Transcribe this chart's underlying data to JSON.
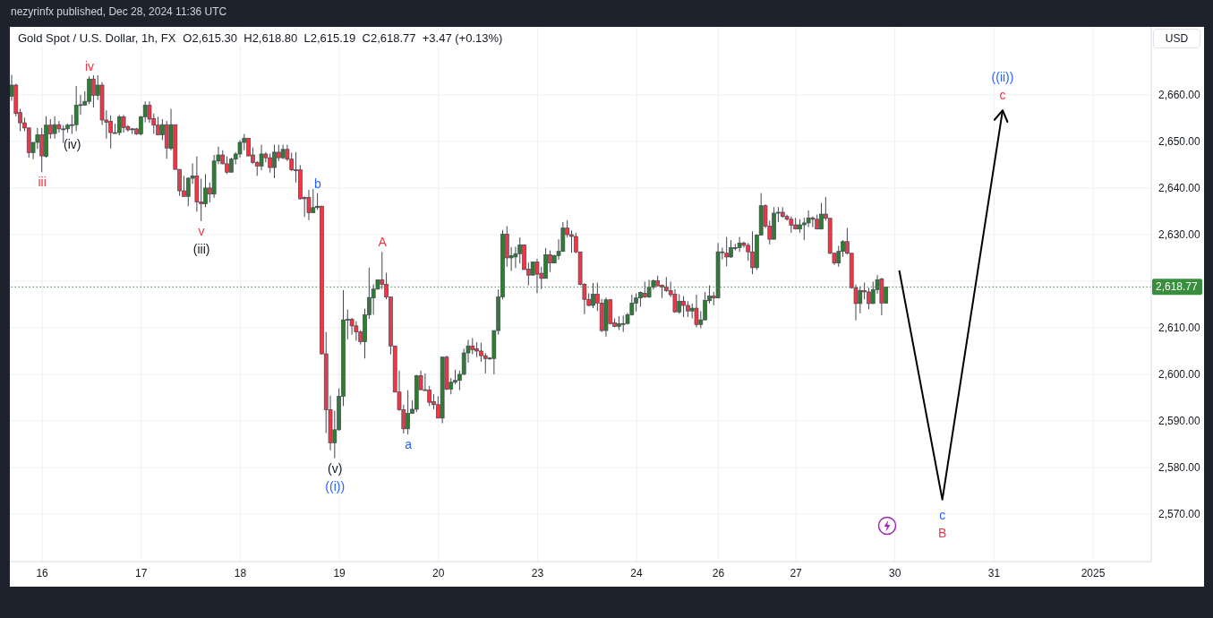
{
  "chart_data": {
    "type": "candlestick",
    "title": "Gold Spot / U.S. Dollar, 1h, FX",
    "subtitle": "O2,615.30  H2,618.80  L2,615.19  C2,618.77  +3.47 (+0.13%)",
    "ylabel": "USD",
    "categories": [
      null,
      null,
      null,
      null,
      null,
      null,
      null,
      "16",
      null,
      null,
      null,
      null,
      null,
      null,
      null,
      null,
      null,
      null,
      null,
      null,
      null,
      null,
      null,
      null,
      null,
      null,
      null,
      null,
      null,
      null,
      "17",
      null,
      null,
      null,
      null,
      null,
      null,
      null,
      null,
      null,
      null,
      null,
      null,
      null,
      null,
      null,
      null,
      null,
      null,
      null,
      null,
      null,
      null,
      "18",
      null,
      null,
      null,
      null,
      null,
      null,
      null,
      null,
      null,
      null,
      null,
      null,
      null,
      null,
      null,
      null,
      null,
      null,
      null,
      null,
      null,
      null,
      "19",
      null,
      null,
      null,
      null,
      null,
      null,
      null,
      null,
      null,
      null,
      null,
      null,
      null,
      null,
      null,
      null,
      null,
      null,
      null,
      null,
      null,
      null,
      "20",
      null,
      null,
      null,
      null,
      null,
      null,
      null,
      null,
      null,
      null,
      null,
      null,
      null,
      null,
      null,
      null,
      null,
      null,
      null,
      null,
      null,
      null,
      "23",
      null,
      null,
      null,
      null,
      null,
      null,
      null,
      null,
      null,
      null,
      null,
      null,
      null,
      null,
      null,
      null,
      null,
      null,
      null,
      null,
      null,
      null,
      "24",
      null,
      null,
      null,
      null,
      null,
      null,
      null,
      null,
      null,
      null,
      null,
      null,
      null,
      null,
      null,
      null,
      null,
      null,
      "26",
      null,
      null,
      null,
      null,
      null,
      null,
      null,
      null,
      null,
      null,
      null,
      null,
      null,
      null,
      null,
      null,
      null,
      "27",
      null,
      null,
      null,
      null,
      null,
      null,
      null,
      null,
      null,
      null,
      null,
      null,
      null,
      null,
      null,
      null,
      null,
      null,
      null,
      null,
      null,
      null,
      "30",
      null,
      null,
      null,
      null,
      null,
      null,
      null,
      null,
      null,
      null,
      null,
      null,
      null,
      null,
      null,
      null,
      null,
      null,
      null,
      null,
      null,
      null,
      "31",
      null,
      null,
      null,
      null,
      null,
      null,
      null,
      null,
      null,
      null,
      null,
      null,
      null,
      null,
      null,
      null,
      null,
      null,
      null,
      null,
      null,
      null,
      "2025",
      null,
      null,
      null,
      null,
      null,
      null,
      null,
      null,
      null,
      null,
      null,
      null,
      null
    ],
    "ohlc": [
      [
        2659.7,
        2664.3,
        2658.7,
        2662.1
      ],
      [
        2662.1,
        2662.4,
        2655.4,
        2656.0
      ],
      [
        2656.2,
        2657.0,
        2652.2,
        2654.0
      ],
      [
        2654.0,
        2655.1,
        2652.2,
        2652.9
      ],
      [
        2652.9,
        2653.0,
        2646.5,
        2647.6
      ],
      [
        2647.6,
        2649.8,
        2646.2,
        2649.8
      ],
      [
        2649.8,
        2652.9,
        2648.4,
        2651.4
      ],
      [
        2651.4,
        2652.9,
        2643.4,
        2646.9
      ],
      [
        2646.8,
        2655.4,
        2646.5,
        2653.5
      ],
      [
        2653.5,
        2654.8,
        2650.6,
        2651.6
      ],
      [
        2651.7,
        2655.4,
        2650.6,
        2653.6
      ],
      [
        2653.6,
        2654.4,
        2651.9,
        2652.7
      ],
      [
        2652.7,
        2653.5,
        2649.7,
        2652.6
      ],
      [
        2652.7,
        2653.8,
        2651.9,
        2653.5
      ],
      [
        2653.6,
        2655.7,
        2651.6,
        2653.6
      ],
      [
        2653.6,
        2661.9,
        2652.2,
        2657.8
      ],
      [
        2657.8,
        2660.0,
        2655.7,
        2657.9
      ],
      [
        2657.8,
        2660.8,
        2657.8,
        2658.6
      ],
      [
        2658.6,
        2664.0,
        2658.0,
        2663.4
      ],
      [
        2663.4,
        2664.2,
        2657.3,
        2659.9
      ],
      [
        2659.9,
        2664.2,
        2658.9,
        2662.1
      ],
      [
        2662.1,
        2662.7,
        2653.5,
        2654.6
      ],
      [
        2654.6,
        2656.7,
        2650.6,
        2654.1
      ],
      [
        2654.3,
        2655.6,
        2648.5,
        2651.9
      ],
      [
        2651.9,
        2653.8,
        2651.7,
        2651.9
      ],
      [
        2651.9,
        2655.7,
        2651.3,
        2655.3
      ],
      [
        2655.3,
        2655.7,
        2651.9,
        2653.0
      ],
      [
        2653.2,
        2653.5,
        2652.1,
        2652.5
      ],
      [
        2652.7,
        2652.9,
        2651.6,
        2652.7
      ],
      [
        2652.7,
        2652.9,
        2651.4,
        2651.6
      ],
      [
        2651.6,
        2655.5,
        2651.3,
        2655.3
      ],
      [
        2655.3,
        2658.6,
        2654.1,
        2657.8
      ],
      [
        2657.8,
        2658.6,
        2654.0,
        2654.8
      ],
      [
        2654.9,
        2656.0,
        2651.6,
        2653.5
      ],
      [
        2653.5,
        2655.3,
        2651.4,
        2651.4
      ],
      [
        2651.4,
        2654.8,
        2650.3,
        2653.6
      ],
      [
        2653.6,
        2654.4,
        2646.3,
        2648.6
      ],
      [
        2648.5,
        2657.0,
        2648.1,
        2653.6
      ],
      [
        2653.6,
        2653.6,
        2644.0,
        2644.0
      ],
      [
        2644.0,
        2644.0,
        2638.3,
        2639.4
      ],
      [
        2639.4,
        2642.6,
        2638.2,
        2638.2
      ],
      [
        2638.2,
        2642.3,
        2636.1,
        2642.1
      ],
      [
        2642.1,
        2645.3,
        2640.9,
        2642.6
      ],
      [
        2642.6,
        2646.8,
        2634.9,
        2637.0
      ],
      [
        2637.0,
        2642.0,
        2632.9,
        2636.6
      ],
      [
        2636.6,
        2643.0,
        2635.9,
        2640.0
      ],
      [
        2640.0,
        2641.2,
        2636.9,
        2638.7
      ],
      [
        2638.7,
        2647.1,
        2637.9,
        2645.8
      ],
      [
        2645.8,
        2648.9,
        2645.1,
        2647.1
      ],
      [
        2647.1,
        2648.1,
        2645.1,
        2645.2
      ],
      [
        2645.2,
        2646.8,
        2643.0,
        2643.4
      ],
      [
        2643.4,
        2646.5,
        2643.4,
        2646.2
      ],
      [
        2646.2,
        2647.7,
        2645.1,
        2647.3
      ],
      [
        2647.3,
        2650.3,
        2646.5,
        2649.8
      ],
      [
        2649.8,
        2651.6,
        2648.1,
        2650.7
      ],
      [
        2650.7,
        2650.7,
        2646.8,
        2646.9
      ],
      [
        2647.1,
        2648.7,
        2645.2,
        2645.5
      ],
      [
        2645.5,
        2645.8,
        2642.6,
        2644.7
      ],
      [
        2644.7,
        2649.3,
        2643.8,
        2647.3
      ],
      [
        2647.3,
        2647.7,
        2645.5,
        2646.5
      ],
      [
        2646.5,
        2647.4,
        2643.3,
        2644.4
      ],
      [
        2644.4,
        2649.3,
        2642.1,
        2647.7
      ],
      [
        2647.7,
        2649.3,
        2645.8,
        2646.5
      ],
      [
        2646.5,
        2649.3,
        2646.2,
        2648.3
      ],
      [
        2648.3,
        2649.3,
        2645.8,
        2646.2
      ],
      [
        2646.2,
        2647.6,
        2643.6,
        2643.9
      ],
      [
        2643.9,
        2647.7,
        2641.2,
        2643.8
      ],
      [
        2643.9,
        2644.9,
        2637.5,
        2637.7
      ],
      [
        2638.0,
        2638.2,
        2633.8,
        2637.7
      ],
      [
        2638.0,
        2639.6,
        2633.1,
        2634.7
      ],
      [
        2634.7,
        2639.8,
        2634.7,
        2635.8
      ],
      [
        2635.8,
        2638.9,
        2635.3,
        2636.1
      ],
      [
        2636.1,
        2636.2,
        2604.2,
        2604.4
      ],
      [
        2604.4,
        2609.1,
        2587.4,
        2592.4
      ],
      [
        2592.4,
        2595.4,
        2583.7,
        2585.3
      ],
      [
        2585.3,
        2592.2,
        2582.0,
        2588.1
      ],
      [
        2588.1,
        2597.0,
        2587.9,
        2595.3
      ],
      [
        2595.3,
        2618.1,
        2593.2,
        2611.7
      ],
      [
        2611.8,
        2613.9,
        2607.5,
        2611.8
      ],
      [
        2611.8,
        2612.1,
        2608.5,
        2610.4
      ],
      [
        2610.4,
        2611.4,
        2607.2,
        2609.1
      ],
      [
        2609.1,
        2609.5,
        2606.4,
        2607.0
      ],
      [
        2607.0,
        2614.1,
        2603.4,
        2612.8
      ],
      [
        2612.8,
        2622.9,
        2611.9,
        2616.5
      ],
      [
        2616.4,
        2619.3,
        2612.8,
        2618.3
      ],
      [
        2618.3,
        2620.3,
        2618.2,
        2620.3
      ],
      [
        2620.3,
        2626.3,
        2618.3,
        2619.3
      ],
      [
        2619.3,
        2621.8,
        2616.1,
        2616.6
      ],
      [
        2616.6,
        2616.6,
        2604.3,
        2606.1
      ],
      [
        2606.1,
        2606.1,
        2596.1,
        2596.2
      ],
      [
        2596.2,
        2600.8,
        2592.2,
        2592.4
      ],
      [
        2592.4,
        2593.5,
        2587.3,
        2588.3
      ],
      [
        2588.3,
        2596.6,
        2587.1,
        2591.6
      ],
      [
        2591.6,
        2594.4,
        2591.6,
        2592.5
      ],
      [
        2592.5,
        2599.9,
        2591.9,
        2599.7
      ],
      [
        2599.7,
        2600.8,
        2596.6,
        2596.7
      ],
      [
        2596.7,
        2600.2,
        2596.6,
        2596.6
      ],
      [
        2596.6,
        2597.5,
        2593.2,
        2594.0
      ],
      [
        2594.1,
        2595.7,
        2592.5,
        2593.5
      ],
      [
        2593.5,
        2595.3,
        2590.6,
        2590.6
      ],
      [
        2590.6,
        2603.7,
        2589.5,
        2603.7
      ],
      [
        2603.7,
        2604.0,
        2596.6,
        2596.8
      ],
      [
        2596.8,
        2599.2,
        2595.7,
        2598.3
      ],
      [
        2598.3,
        2601.0,
        2597.9,
        2598.7
      ],
      [
        2598.7,
        2600.8,
        2596.6,
        2600.0
      ],
      [
        2600.0,
        2605.5,
        2599.9,
        2604.6
      ],
      [
        2604.6,
        2607.4,
        2602.5,
        2606.1
      ],
      [
        2606.1,
        2607.8,
        2604.3,
        2605.3
      ],
      [
        2605.5,
        2606.9,
        2603.7,
        2605.0
      ],
      [
        2605.0,
        2606.8,
        2602.7,
        2604.0
      ],
      [
        2604.0,
        2604.6,
        2600.2,
        2603.4
      ],
      [
        2603.5,
        2603.7,
        2603.1,
        2603.5
      ],
      [
        2603.4,
        2609.4,
        2600.0,
        2609.4
      ],
      [
        2609.4,
        2618.2,
        2608.5,
        2616.6
      ],
      [
        2616.6,
        2631.0,
        2616.1,
        2630.1
      ],
      [
        2630.1,
        2631.8,
        2623.1,
        2625.0
      ],
      [
        2625.0,
        2627.3,
        2622.2,
        2625.5
      ],
      [
        2625.2,
        2627.4,
        2622.8,
        2625.9
      ],
      [
        2625.9,
        2629.4,
        2623.8,
        2627.8
      ],
      [
        2627.8,
        2627.9,
        2622.5,
        2622.5
      ],
      [
        2622.6,
        2624.0,
        2619.1,
        2621.3
      ],
      [
        2621.3,
        2624.2,
        2621.2,
        2624.1
      ],
      [
        2624.1,
        2624.8,
        2617.4,
        2621.5
      ],
      [
        2621.7,
        2623.1,
        2618.3,
        2620.6
      ],
      [
        2620.6,
        2627.1,
        2620.6,
        2625.7
      ],
      [
        2625.7,
        2626.6,
        2622.0,
        2623.9
      ],
      [
        2623.9,
        2625.7,
        2623.8,
        2625.5
      ],
      [
        2625.5,
        2629.0,
        2624.6,
        2626.4
      ],
      [
        2626.4,
        2632.7,
        2626.3,
        2631.4
      ],
      [
        2631.4,
        2633.1,
        2629.4,
        2630.0
      ],
      [
        2630.0,
        2630.9,
        2626.1,
        2629.6
      ],
      [
        2629.6,
        2630.4,
        2626.0,
        2626.3
      ],
      [
        2626.3,
        2626.3,
        2619.1,
        2619.3
      ],
      [
        2619.3,
        2619.6,
        2612.9,
        2616.1
      ],
      [
        2616.1,
        2617.4,
        2614.6,
        2614.8
      ],
      [
        2614.8,
        2619.6,
        2614.2,
        2617.2
      ],
      [
        2617.2,
        2619.7,
        2613.6,
        2615.3
      ],
      [
        2615.3,
        2616.2,
        2609.1,
        2609.4
      ],
      [
        2609.4,
        2616.5,
        2608.1,
        2616.0
      ],
      [
        2616.0,
        2616.2,
        2610.7,
        2610.9
      ],
      [
        2611.1,
        2612.0,
        2610.1,
        2610.3
      ],
      [
        2610.3,
        2612.5,
        2609.5,
        2610.9
      ],
      [
        2610.9,
        2612.6,
        2609.1,
        2610.9
      ],
      [
        2610.9,
        2613.2,
        2610.7,
        2612.8
      ],
      [
        2612.8,
        2617.1,
        2612.6,
        2615.3
      ],
      [
        2615.3,
        2617.4,
        2613.5,
        2616.4
      ],
      [
        2616.4,
        2617.8,
        2614.5,
        2617.6
      ],
      [
        2617.4,
        2619.9,
        2616.4,
        2616.6
      ],
      [
        2616.6,
        2620.3,
        2616.4,
        2618.7
      ],
      [
        2618.7,
        2620.4,
        2618.2,
        2620.1
      ],
      [
        2620.1,
        2621.2,
        2618.9,
        2619.0
      ],
      [
        2619.1,
        2619.3,
        2616.4,
        2618.7
      ],
      [
        2618.8,
        2620.9,
        2617.7,
        2618.0
      ],
      [
        2618.0,
        2619.9,
        2616.6,
        2617.1
      ],
      [
        2617.2,
        2618.3,
        2613.3,
        2613.4
      ],
      [
        2613.4,
        2617.2,
        2613.0,
        2615.7
      ],
      [
        2615.7,
        2616.8,
        2612.3,
        2614.8
      ],
      [
        2614.8,
        2615.7,
        2612.3,
        2613.6
      ],
      [
        2613.6,
        2615.2,
        2612.0,
        2614.2
      ],
      [
        2614.2,
        2617.1,
        2610.1,
        2610.7
      ],
      [
        2610.7,
        2613.6,
        2609.9,
        2611.7
      ],
      [
        2611.7,
        2617.7,
        2611.6,
        2615.9
      ],
      [
        2615.8,
        2619.1,
        2615.2,
        2616.8
      ],
      [
        2616.8,
        2617.7,
        2614.8,
        2616.4
      ],
      [
        2616.4,
        2628.2,
        2616.4,
        2626.3
      ],
      [
        2626.3,
        2627.2,
        2624.7,
        2626.3
      ],
      [
        2626.0,
        2629.5,
        2623.2,
        2625.2
      ],
      [
        2625.2,
        2628.8,
        2625.0,
        2627.2
      ],
      [
        2627.2,
        2628.0,
        2626.6,
        2627.2
      ],
      [
        2627.2,
        2629.5,
        2626.3,
        2628.2
      ],
      [
        2628.2,
        2628.5,
        2627.2,
        2627.7
      ],
      [
        2627.7,
        2628.2,
        2624.4,
        2626.3
      ],
      [
        2626.3,
        2630.7,
        2621.5,
        2622.9
      ],
      [
        2622.9,
        2630.1,
        2622.4,
        2629.9
      ],
      [
        2629.9,
        2638.9,
        2629.8,
        2636.2
      ],
      [
        2636.2,
        2636.5,
        2631.4,
        2631.8
      ],
      [
        2631.8,
        2633.0,
        2627.9,
        2629.0
      ],
      [
        2629.0,
        2635.9,
        2629.0,
        2634.6
      ],
      [
        2634.6,
        2635.9,
        2632.7,
        2634.8
      ],
      [
        2634.8,
        2635.9,
        2633.6,
        2633.9
      ],
      [
        2633.9,
        2634.3,
        2633.0,
        2633.3
      ],
      [
        2633.3,
        2633.9,
        2630.4,
        2632.0
      ],
      [
        2632.1,
        2633.6,
        2631.1,
        2631.2
      ],
      [
        2631.2,
        2633.3,
        2630.4,
        2632.1
      ],
      [
        2632.1,
        2633.6,
        2628.8,
        2632.5
      ],
      [
        2632.5,
        2635.2,
        2631.6,
        2633.6
      ],
      [
        2633.6,
        2633.9,
        2631.6,
        2633.3
      ],
      [
        2633.3,
        2634.3,
        2631.1,
        2631.2
      ],
      [
        2631.2,
        2636.8,
        2631.1,
        2634.4
      ],
      [
        2634.4,
        2638.1,
        2633.0,
        2633.5
      ],
      [
        2633.5,
        2633.5,
        2625.8,
        2626.0
      ],
      [
        2626.0,
        2626.1,
        2623.5,
        2623.9
      ],
      [
        2623.9,
        2627.6,
        2623.1,
        2626.4
      ],
      [
        2626.4,
        2628.8,
        2625.2,
        2628.5
      ],
      [
        2628.5,
        2631.4,
        2625.7,
        2626.0
      ],
      [
        2626.0,
        2626.0,
        2618.4,
        2618.6
      ],
      [
        2618.6,
        2619.3,
        2611.6,
        2615.2
      ],
      [
        2615.2,
        2618.9,
        2613.1,
        2618.0
      ],
      [
        2618.0,
        2619.7,
        2616.1,
        2617.7
      ],
      [
        2617.7,
        2618.6,
        2614.0,
        2615.2
      ],
      [
        2615.2,
        2619.9,
        2615.1,
        2618.2
      ],
      [
        2618.2,
        2621.3,
        2617.3,
        2620.3
      ],
      [
        2620.5,
        2620.7,
        2612.7,
        2615.3
      ],
      [
        2615.3,
        2618.8,
        2615.19,
        2618.77
      ],
      null,
      null,
      null,
      null,
      null,
      null,
      null,
      null,
      null,
      null,
      null,
      null,
      null,
      null,
      null,
      null,
      null,
      null,
      null,
      null,
      null,
      null,
      null,
      null,
      null,
      null,
      null,
      null,
      null,
      null,
      null,
      null,
      null,
      null,
      null,
      null,
      null,
      null,
      null,
      null,
      null,
      null,
      null,
      null,
      null,
      null,
      null,
      null,
      null,
      null,
      null,
      null,
      null,
      null,
      null,
      null,
      null,
      null,
      null,
      null,
      null
    ],
    "series": [
      {
        "type": "line",
        "color": "#000000",
        "values": [
          null,
          null,
          null,
          null,
          null,
          null,
          null,
          null,
          null,
          null,
          null,
          null,
          null,
          null,
          null,
          null,
          null,
          null,
          null,
          null,
          null,
          null,
          null,
          null,
          null,
          null,
          null,
          null,
          null,
          null,
          null,
          null,
          null,
          null,
          null,
          null,
          null,
          null,
          null,
          null,
          null,
          null,
          null,
          null,
          null,
          null,
          null,
          null,
          null,
          null,
          null,
          null,
          null,
          null,
          null,
          null,
          null,
          null,
          null,
          null,
          null,
          null,
          null,
          null,
          null,
          null,
          null,
          null,
          null,
          null,
          null,
          null,
          null,
          null,
          null,
          null,
          null,
          null,
          null,
          null,
          null,
          null,
          null,
          null,
          null,
          null,
          null,
          null,
          null,
          null,
          null,
          null,
          null,
          null,
          null,
          null,
          null,
          null,
          null,
          null,
          null,
          null,
          null,
          null,
          null,
          null,
          null,
          null,
          null,
          null,
          null,
          null,
          null,
          null,
          null,
          null,
          null,
          null,
          null,
          null,
          null,
          null,
          null,
          null,
          null,
          null,
          null,
          null,
          null,
          null,
          null,
          null,
          null,
          null,
          null,
          null,
          null,
          null,
          null,
          null,
          null,
          null,
          null,
          null,
          null,
          null,
          null,
          null,
          null,
          null,
          null,
          null,
          null,
          null,
          null,
          null,
          null,
          null,
          null,
          null,
          null,
          null,
          null,
          null,
          null,
          null,
          null,
          null,
          null,
          null,
          null,
          null,
          null,
          null,
          null,
          null,
          null,
          null,
          null,
          null,
          null,
          null,
          null,
          null,
          null,
          null,
          null,
          null,
          null,
          null,
          null,
          null,
          null,
          null,
          null,
          null,
          null,
          null,
          null,
          null,
          null,
          null,
          null,
          null,
          null,
          null,
          2622.3,
          null,
          null,
          null,
          null,
          null,
          null,
          null,
          null,
          null,
          2573.1,
          null,
          null,
          null,
          null,
          null,
          null,
          null,
          null,
          null,
          null,
          null,
          null,
          null,
          2656.7,
          null,
          null,
          null,
          null,
          null,
          null,
          null,
          null,
          null,
          null,
          null,
          null,
          null,
          null,
          null,
          null,
          null,
          null,
          null,
          null,
          null,
          null,
          null,
          null,
          null,
          null,
          null,
          null,
          null,
          null,
          null,
          null,
          null,
          null
        ]
      }
    ],
    "ylim": [
      2559.8,
      2674.6
    ],
    "yticks": [
      {
        "value": 2570,
        "label": "2,570.00"
      },
      {
        "value": 2580,
        "label": "2,580.00"
      },
      {
        "value": 2590,
        "label": "2,590.00"
      },
      {
        "value": 2600,
        "label": "2,600.00"
      },
      {
        "value": 2610,
        "label": "2,610.00"
      },
      {
        "value": 2620,
        "label": null
      },
      {
        "value": 2630,
        "label": "2,630.00"
      },
      {
        "value": 2640,
        "label": "2,640.00"
      },
      {
        "value": 2650,
        "label": "2,650.00"
      },
      {
        "value": 2660,
        "label": "2,660.00"
      }
    ],
    "grid": true,
    "ref_lines": [
      {
        "axis": "y",
        "value": 2618.77,
        "label": "2,618.77",
        "color": "#388e3c",
        "line_style": "dotted"
      }
    ],
    "annotations": [
      "nezyrinfx published, Dec 28, 2024 11:36 UTC",
      {
        "text": "iv",
        "y": 2664.0
      },
      {
        "text": "iii",
        "y": 2643.4
      },
      {
        "text": "v",
        "y": 2632.9
      },
      {
        "text": "(iii)",
        "y": 2632.9
      },
      {
        "text": "(iv)",
        "y": 2651.6
      },
      {
        "text": "(v)",
        "y": 2582.0
      },
      {
        "text": "((i))",
        "y": 2582.0
      },
      {
        "text": "A",
        "y": 2626.3
      },
      {
        "text": "a",
        "y": 2587.1
      },
      {
        "text": "b",
        "y": 2638.9
      },
      {
        "text": "c",
        "y": 2656.7
      },
      {
        "text": "((ii))",
        "y": 2656.7
      },
      {
        "text": "c",
        "y": 2573.1
      },
      {
        "text": "B",
        "y": 2573.1
      }
    ]
  }
}
